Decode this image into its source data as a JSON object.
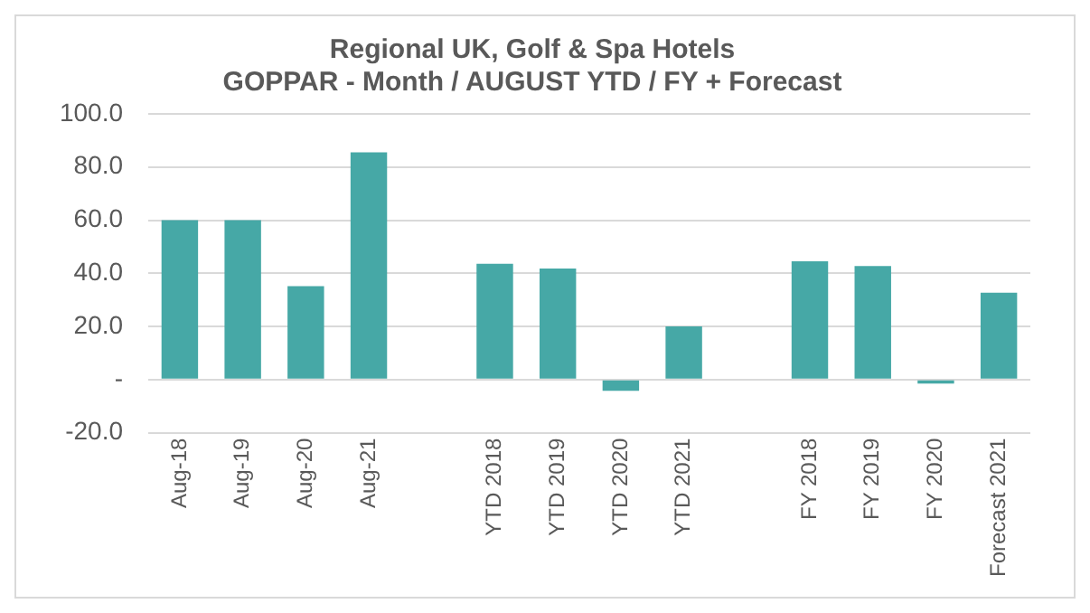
{
  "chart_data": {
    "type": "bar",
    "title": "Regional UK, Golf & Spa Hotels",
    "subtitle": "GOPPAR - Month / AUGUST YTD / FY + Forecast",
    "categories": [
      "Aug-18",
      "Aug-19",
      "Aug-20",
      "Aug-21",
      null,
      "YTD 2018",
      "YTD 2019",
      "YTD 2020",
      "YTD 2021",
      null,
      "FY 2018",
      "FY 2019",
      "FY 2020",
      "Forecast 2021"
    ],
    "values": [
      60,
      60,
      35.2,
      85.5,
      null,
      43.6,
      41.8,
      -4.2,
      20,
      null,
      44.5,
      42.7,
      -1.5,
      32.7
    ],
    "color": "#46a8a6",
    "ylim": [
      -20,
      100
    ],
    "yticks": [
      {
        "value": -20,
        "label": "-20.0"
      },
      {
        "value": 0,
        "label": "-"
      },
      {
        "value": 20,
        "label": "20.0"
      },
      {
        "value": 40,
        "label": "40.0"
      },
      {
        "value": 60,
        "label": "60.0"
      },
      {
        "value": 80,
        "label": "80.0"
      },
      {
        "value": 100,
        "label": "100.0"
      }
    ],
    "grid": "y",
    "legend": false
  }
}
